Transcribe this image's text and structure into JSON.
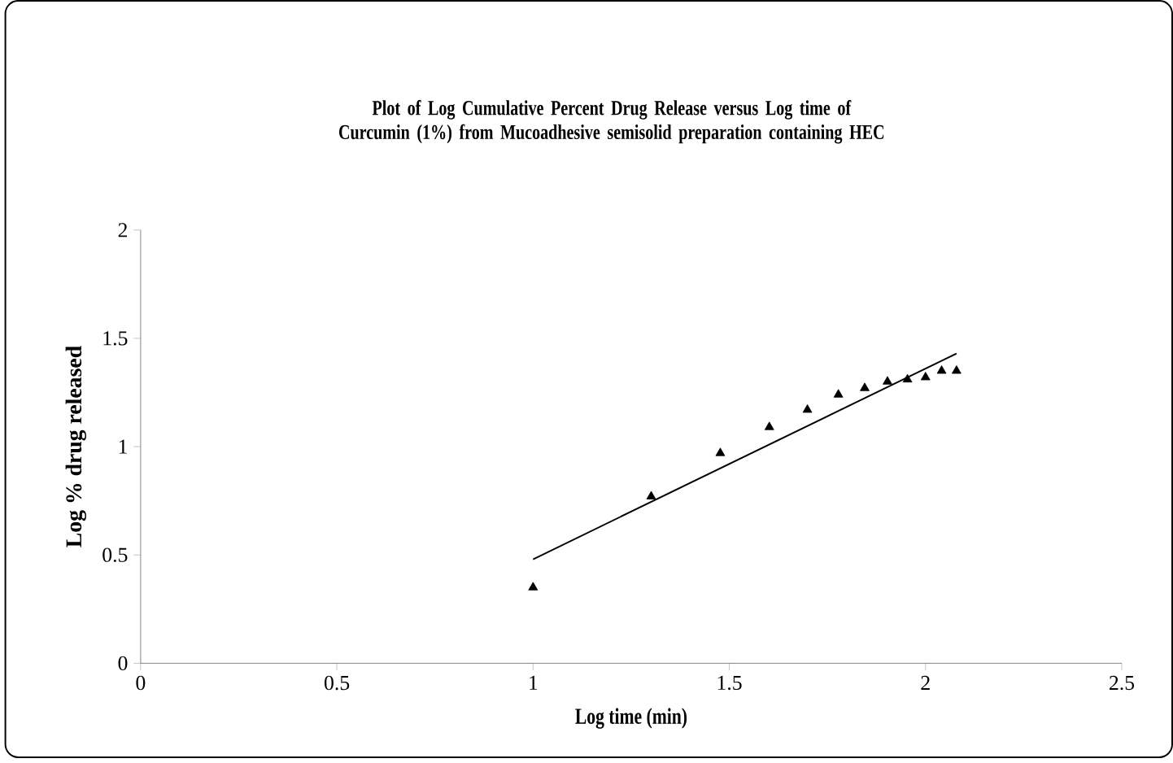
{
  "chart_data": {
    "type": "scatter",
    "title": "Plot of Log Cumulative Percent Drug Release versus Log time of Curcumin (1%) from Mucoadhesive semisolid preparation containing HEC",
    "xlabel": "Log time (min)",
    "ylabel": "Log % drug released",
    "xlim": [
      0,
      2.5
    ],
    "xticks": [
      0,
      0.5,
      1,
      1.5,
      2,
      2.5
    ],
    "ylim": [
      0,
      2
    ],
    "yticks": [
      0,
      0.5,
      1,
      1.5,
      2
    ],
    "series": [
      {
        "color": "#000000",
        "marker": "triangle",
        "x": [
          1,
          1.301,
          1.477,
          1.602,
          1.699,
          1.778,
          1.845,
          1.903,
          1.954,
          2,
          2.041,
          2.079
        ],
        "values": [
          0.35,
          0.77,
          0.97,
          1.09,
          1.17,
          1.24,
          1.27,
          1.3,
          1.31,
          1.32,
          1.35,
          1.35
        ]
      },
      {
        "type": "line",
        "color": "#000000",
        "marker": "none",
        "x": [
          1,
          2.079
        ],
        "values": [
          0.48,
          1.43
        ]
      }
    ]
  }
}
